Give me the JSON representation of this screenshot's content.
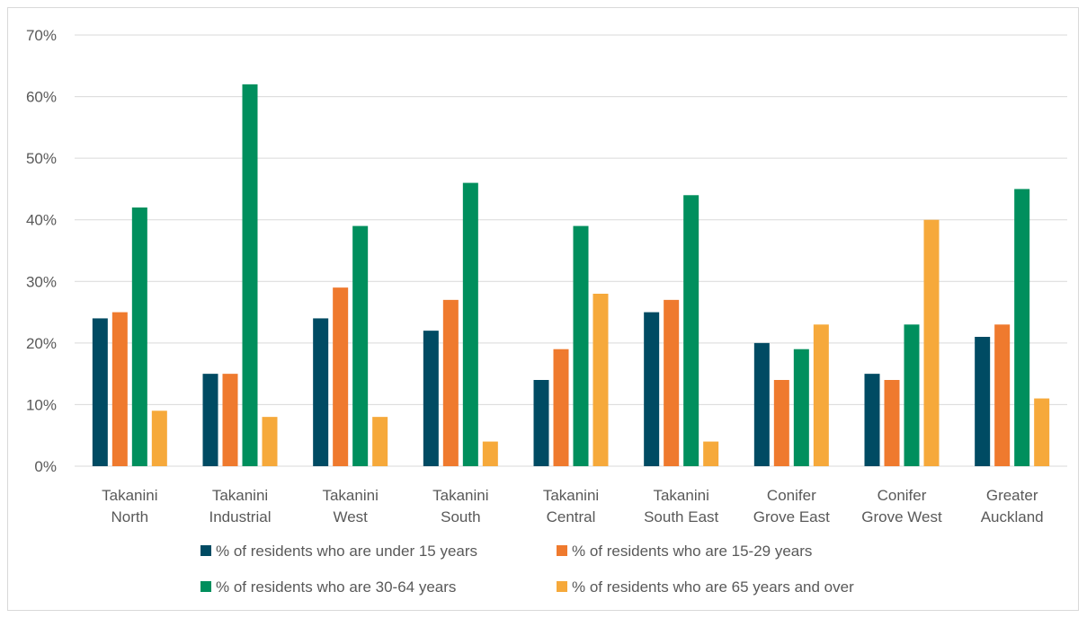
{
  "chart_data": {
    "type": "bar",
    "categories": [
      [
        "Takanini",
        "North"
      ],
      [
        "Takanini",
        "Industrial"
      ],
      [
        "Takanini",
        "West"
      ],
      [
        "Takanini",
        "South"
      ],
      [
        "Takanini",
        "Central"
      ],
      [
        "Takanini",
        "South East"
      ],
      [
        "Conifer",
        "Grove East"
      ],
      [
        "Conifer",
        "Grove West"
      ],
      [
        "Greater",
        "Auckland"
      ]
    ],
    "series": [
      {
        "name": "% of residents who are under 15 years",
        "color": "#004b63",
        "values": [
          24,
          15,
          24,
          22,
          14,
          25,
          20,
          15,
          21
        ]
      },
      {
        "name": "% of residents who are 15-29 years",
        "color": "#ef7a2e",
        "values": [
          25,
          15,
          29,
          27,
          19,
          27,
          14,
          14,
          23
        ]
      },
      {
        "name": "% of residents who are 30-64 years",
        "color": "#008f5d",
        "values": [
          42,
          62,
          39,
          46,
          39,
          44,
          19,
          23,
          45
        ]
      },
      {
        "name": "% of residents who are 65 years and over",
        "color": "#f6a93b",
        "values": [
          9,
          8,
          8,
          4,
          28,
          4,
          23,
          40,
          11
        ]
      }
    ],
    "y_ticks": [
      "0%",
      "10%",
      "20%",
      "30%",
      "40%",
      "50%",
      "60%",
      "70%"
    ],
    "ylim": [
      0,
      70
    ],
    "unit": "%",
    "grid": true,
    "legend_position": "bottom",
    "title": "",
    "xlabel": "",
    "ylabel": ""
  }
}
